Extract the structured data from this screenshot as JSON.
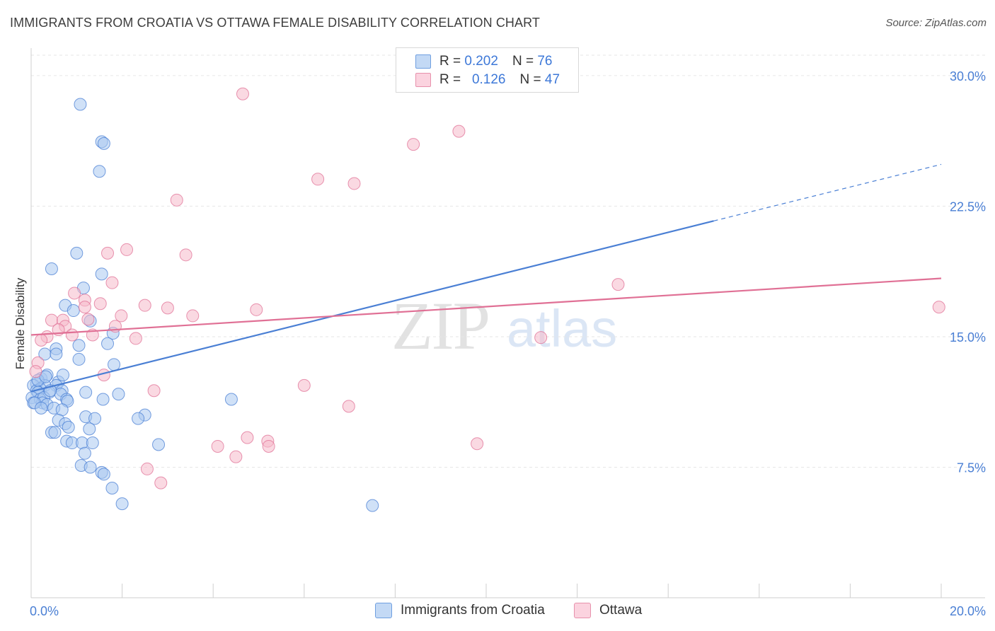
{
  "title": "IMMIGRANTS FROM CROATIA VS OTTAWA FEMALE DISABILITY CORRELATION CHART",
  "source": "Source: ZipAtlas.com",
  "watermark": {
    "zip": "ZIP",
    "atlas": "atlas"
  },
  "legend": {
    "rows": [
      {
        "r_label": "R =",
        "r_value": "0.202",
        "n_label": "N =",
        "n_value": "76",
        "color": "#a9c8f0"
      },
      {
        "r_label": "R =",
        "r_value": "0.126",
        "n_label": "N =",
        "n_value": "47",
        "color": "#f6b9cb"
      }
    ]
  },
  "bottom_legend": [
    {
      "label": "Immigrants from Croatia",
      "color": "#a9c8f0"
    },
    {
      "label": "Ottawa",
      "color": "#f6b9cb"
    }
  ],
  "chart_data": {
    "type": "scatter",
    "title": "IMMIGRANTS FROM CROATIA VS OTTAWA FEMALE DISABILITY CORRELATION CHART",
    "xlabel": "",
    "ylabel": "Female Disability",
    "xlim": [
      0,
      20
    ],
    "ylim": [
      0,
      31.5
    ],
    "x_tick_labels": [
      {
        "value": 0,
        "label": "0.0%"
      },
      {
        "value": 20,
        "label": "20.0%"
      }
    ],
    "y_tick_labels": [
      {
        "value": 7.5,
        "label": "7.5%"
      },
      {
        "value": 15,
        "label": "15.0%"
      },
      {
        "value": 22.5,
        "label": "22.5%"
      },
      {
        "value": 30,
        "label": "30.0%"
      }
    ],
    "grid": true,
    "legend_position": "top-center",
    "series": [
      {
        "name": "Immigrants from Croatia",
        "color": "#4a7fd4",
        "fill": "#a9c8f0",
        "trend": {
          "x0": 0,
          "y0": 11.85,
          "x1": 15.0,
          "y1": 21.65,
          "dashed_to_x": 20,
          "dashed_to_y": 24.9
        },
        "points": [
          [
            1.08,
            28.35
          ],
          [
            1.55,
            26.2
          ],
          [
            1.6,
            26.1
          ],
          [
            1.5,
            24.5
          ],
          [
            1.0,
            19.8
          ],
          [
            0.45,
            18.9
          ],
          [
            1.55,
            18.6
          ],
          [
            1.15,
            17.8
          ],
          [
            0.75,
            16.8
          ],
          [
            0.93,
            16.5
          ],
          [
            1.3,
            15.9
          ],
          [
            1.8,
            15.2
          ],
          [
            1.68,
            14.6
          ],
          [
            1.05,
            14.5
          ],
          [
            0.55,
            14.3
          ],
          [
            0.3,
            14.0
          ],
          [
            0.55,
            14.0
          ],
          [
            1.05,
            13.7
          ],
          [
            1.82,
            13.4
          ],
          [
            0.22,
            12.6
          ],
          [
            0.6,
            12.4
          ],
          [
            0.7,
            12.8
          ],
          [
            0.35,
            12.8
          ],
          [
            0.12,
            12.3
          ],
          [
            0.3,
            12.2
          ],
          [
            0.55,
            12.2
          ],
          [
            0.05,
            12.2
          ],
          [
            0.2,
            12.0
          ],
          [
            0.12,
            11.9
          ],
          [
            0.4,
            11.8
          ],
          [
            0.15,
            11.8
          ],
          [
            0.68,
            11.9
          ],
          [
            1.2,
            11.8
          ],
          [
            1.92,
            11.7
          ],
          [
            0.02,
            11.5
          ],
          [
            0.2,
            11.4
          ],
          [
            0.28,
            11.5
          ],
          [
            0.65,
            11.7
          ],
          [
            0.78,
            11.4
          ],
          [
            1.58,
            11.4
          ],
          [
            0.25,
            11.2
          ],
          [
            0.05,
            11.2
          ],
          [
            0.8,
            11.3
          ],
          [
            0.08,
            11.2
          ],
          [
            0.35,
            11.1
          ],
          [
            0.22,
            10.9
          ],
          [
            0.5,
            10.9
          ],
          [
            0.68,
            10.8
          ],
          [
            0.6,
            10.2
          ],
          [
            1.2,
            10.4
          ],
          [
            1.4,
            10.3
          ],
          [
            2.5,
            10.5
          ],
          [
            2.35,
            10.3
          ],
          [
            0.75,
            10.0
          ],
          [
            0.82,
            9.8
          ],
          [
            1.28,
            9.7
          ],
          [
            0.45,
            9.5
          ],
          [
            0.52,
            9.5
          ],
          [
            0.78,
            9.0
          ],
          [
            0.9,
            8.9
          ],
          [
            1.12,
            8.9
          ],
          [
            1.35,
            8.9
          ],
          [
            2.8,
            8.8
          ],
          [
            1.18,
            8.3
          ],
          [
            1.1,
            7.6
          ],
          [
            1.3,
            7.5
          ],
          [
            1.55,
            7.2
          ],
          [
            1.6,
            7.1
          ],
          [
            1.78,
            6.3
          ],
          [
            2.0,
            5.4
          ],
          [
            4.4,
            11.4
          ],
          [
            7.5,
            5.3
          ],
          [
            10.35,
            29.5
          ],
          [
            0.15,
            12.5
          ],
          [
            0.42,
            11.9
          ],
          [
            0.32,
            12.7
          ]
        ]
      },
      {
        "name": "Ottawa",
        "color": "#e07095",
        "fill": "#f6b9cb",
        "trend": {
          "x0": 0,
          "y0": 15.1,
          "x1": 20,
          "y1": 18.35
        },
        "points": [
          [
            4.65,
            28.95
          ],
          [
            9.4,
            26.8
          ],
          [
            8.4,
            26.05
          ],
          [
            6.3,
            24.05
          ],
          [
            7.1,
            23.8
          ],
          [
            3.2,
            22.85
          ],
          [
            2.1,
            20.0
          ],
          [
            1.68,
            19.8
          ],
          [
            3.4,
            19.7
          ],
          [
            1.78,
            18.1
          ],
          [
            12.9,
            18.0
          ],
          [
            0.95,
            17.5
          ],
          [
            1.18,
            17.1
          ],
          [
            1.52,
            16.9
          ],
          [
            1.18,
            16.7
          ],
          [
            2.5,
            16.8
          ],
          [
            3.0,
            16.65
          ],
          [
            4.95,
            16.55
          ],
          [
            19.95,
            16.7
          ],
          [
            1.98,
            16.2
          ],
          [
            3.55,
            16.2
          ],
          [
            0.45,
            15.95
          ],
          [
            0.7,
            15.95
          ],
          [
            1.25,
            16.0
          ],
          [
            0.75,
            15.6
          ],
          [
            1.85,
            15.6
          ],
          [
            0.6,
            15.4
          ],
          [
            0.9,
            15.1
          ],
          [
            1.35,
            15.1
          ],
          [
            0.35,
            15.0
          ],
          [
            2.3,
            14.9
          ],
          [
            11.2,
            14.95
          ],
          [
            0.22,
            14.8
          ],
          [
            0.15,
            13.5
          ],
          [
            0.1,
            13.0
          ],
          [
            1.6,
            12.8
          ],
          [
            2.7,
            11.9
          ],
          [
            6.0,
            12.2
          ],
          [
            6.98,
            11.0
          ],
          [
            4.75,
            9.2
          ],
          [
            5.2,
            9.0
          ],
          [
            5.22,
            8.7
          ],
          [
            4.1,
            8.7
          ],
          [
            9.8,
            8.85
          ],
          [
            4.5,
            8.1
          ],
          [
            2.55,
            7.4
          ],
          [
            2.85,
            6.6
          ]
        ]
      }
    ]
  }
}
